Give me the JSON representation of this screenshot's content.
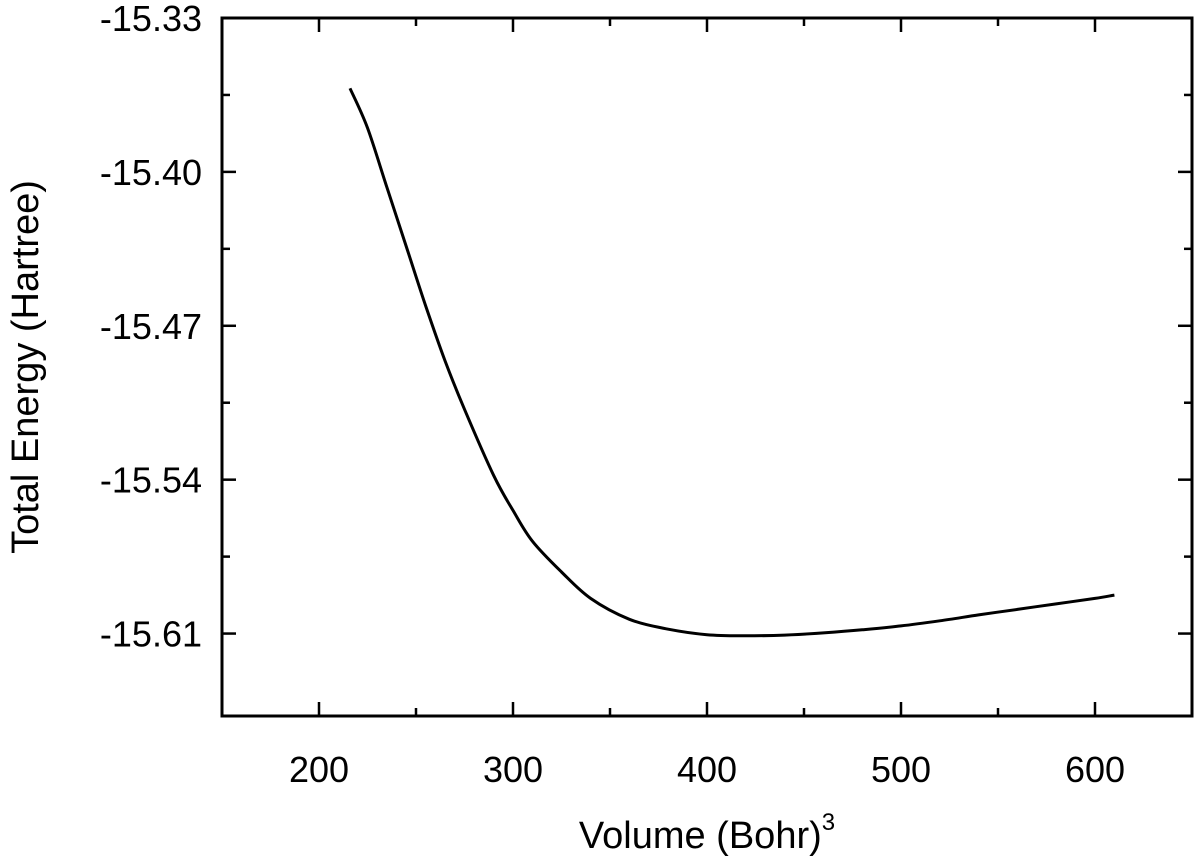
{
  "chart_data": {
    "type": "line",
    "title": "",
    "xlabel": "Volume (Bohr)",
    "xlabel_superscript": "3",
    "ylabel": "Total Energy (Hartree)",
    "xlim": [
      150,
      650
    ],
    "ylim": [
      -15.6475,
      -15.33
    ],
    "grid": false,
    "legend": "none",
    "x_ticks": [
      200,
      300,
      400,
      500,
      600
    ],
    "x_tick_labels": [
      "200",
      "300",
      "400",
      "500",
      "600"
    ],
    "x_minor_ticks": [
      150,
      250,
      350,
      450,
      550,
      650
    ],
    "y_ticks": [
      -15.33,
      -15.4,
      -15.47,
      -15.54,
      -15.61
    ],
    "y_tick_labels": [
      "-15.33",
      "-15.40",
      "-15.47",
      "-15.54",
      "-15.61"
    ],
    "y_minor_ticks": [
      -15.365,
      -15.435,
      -15.505,
      -15.575
    ],
    "series": [
      {
        "name": "",
        "color": "#000000",
        "x": [
          216,
          225,
          235,
          245,
          255,
          265,
          275,
          290,
          300,
          310,
          325,
          340,
          360,
          380,
          400,
          420,
          440,
          460,
          480,
          500,
          520,
          540,
          560,
          580,
          600,
          610
        ],
        "y": [
          -15.362,
          -15.38,
          -15.407,
          -15.434,
          -15.461,
          -15.486,
          -15.508,
          -15.538,
          -15.554,
          -15.568,
          -15.582,
          -15.594,
          -15.6035,
          -15.608,
          -15.6105,
          -15.611,
          -15.6107,
          -15.6097,
          -15.6083,
          -15.6065,
          -15.6042,
          -15.6015,
          -15.599,
          -15.5965,
          -15.594,
          -15.5925
        ]
      }
    ]
  }
}
